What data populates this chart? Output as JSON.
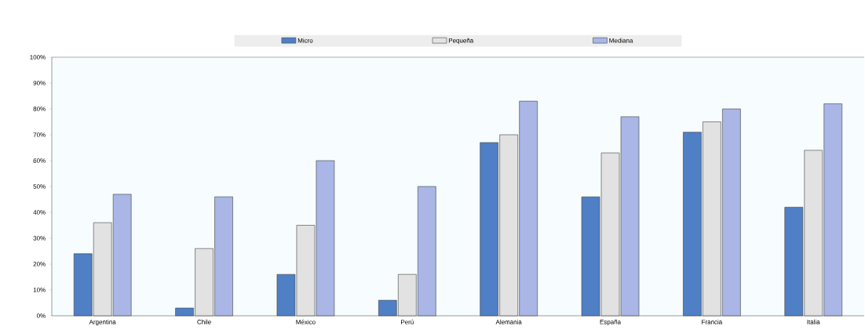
{
  "chart_data": {
    "type": "bar",
    "categories": [
      "Argentina",
      "Chile",
      "México",
      "Perú",
      "Alemania",
      "España",
      "Francia",
      "Italia"
    ],
    "series": [
      {
        "name": "Micro",
        "color": "#4f7fc4",
        "values": [
          24,
          3,
          16,
          6,
          67,
          46,
          71,
          42
        ]
      },
      {
        "name": "Pequeña",
        "color": "#e2e2e2",
        "values": [
          36,
          26,
          35,
          16,
          70,
          63,
          75,
          64
        ]
      },
      {
        "name": "Mediana",
        "color": "#a9b6e6",
        "values": [
          47,
          46,
          60,
          50,
          83,
          77,
          80,
          82
        ]
      }
    ],
    "ylim": [
      0,
      100
    ],
    "yticks": [
      {
        "value": 0,
        "label": "0%"
      },
      {
        "value": 10,
        "label": "10%"
      },
      {
        "value": 20,
        "label": "20%"
      },
      {
        "value": 30,
        "label": "30%"
      },
      {
        "value": 40,
        "label": "40%"
      },
      {
        "value": 50,
        "label": "50%"
      },
      {
        "value": 60,
        "label": "60%"
      },
      {
        "value": 70,
        "label": "70%"
      },
      {
        "value": 80,
        "label": "80%"
      },
      {
        "value": 90,
        "label": "90%"
      },
      {
        "value": 100,
        "label": "100%"
      }
    ],
    "grid": false,
    "legend": "top"
  }
}
